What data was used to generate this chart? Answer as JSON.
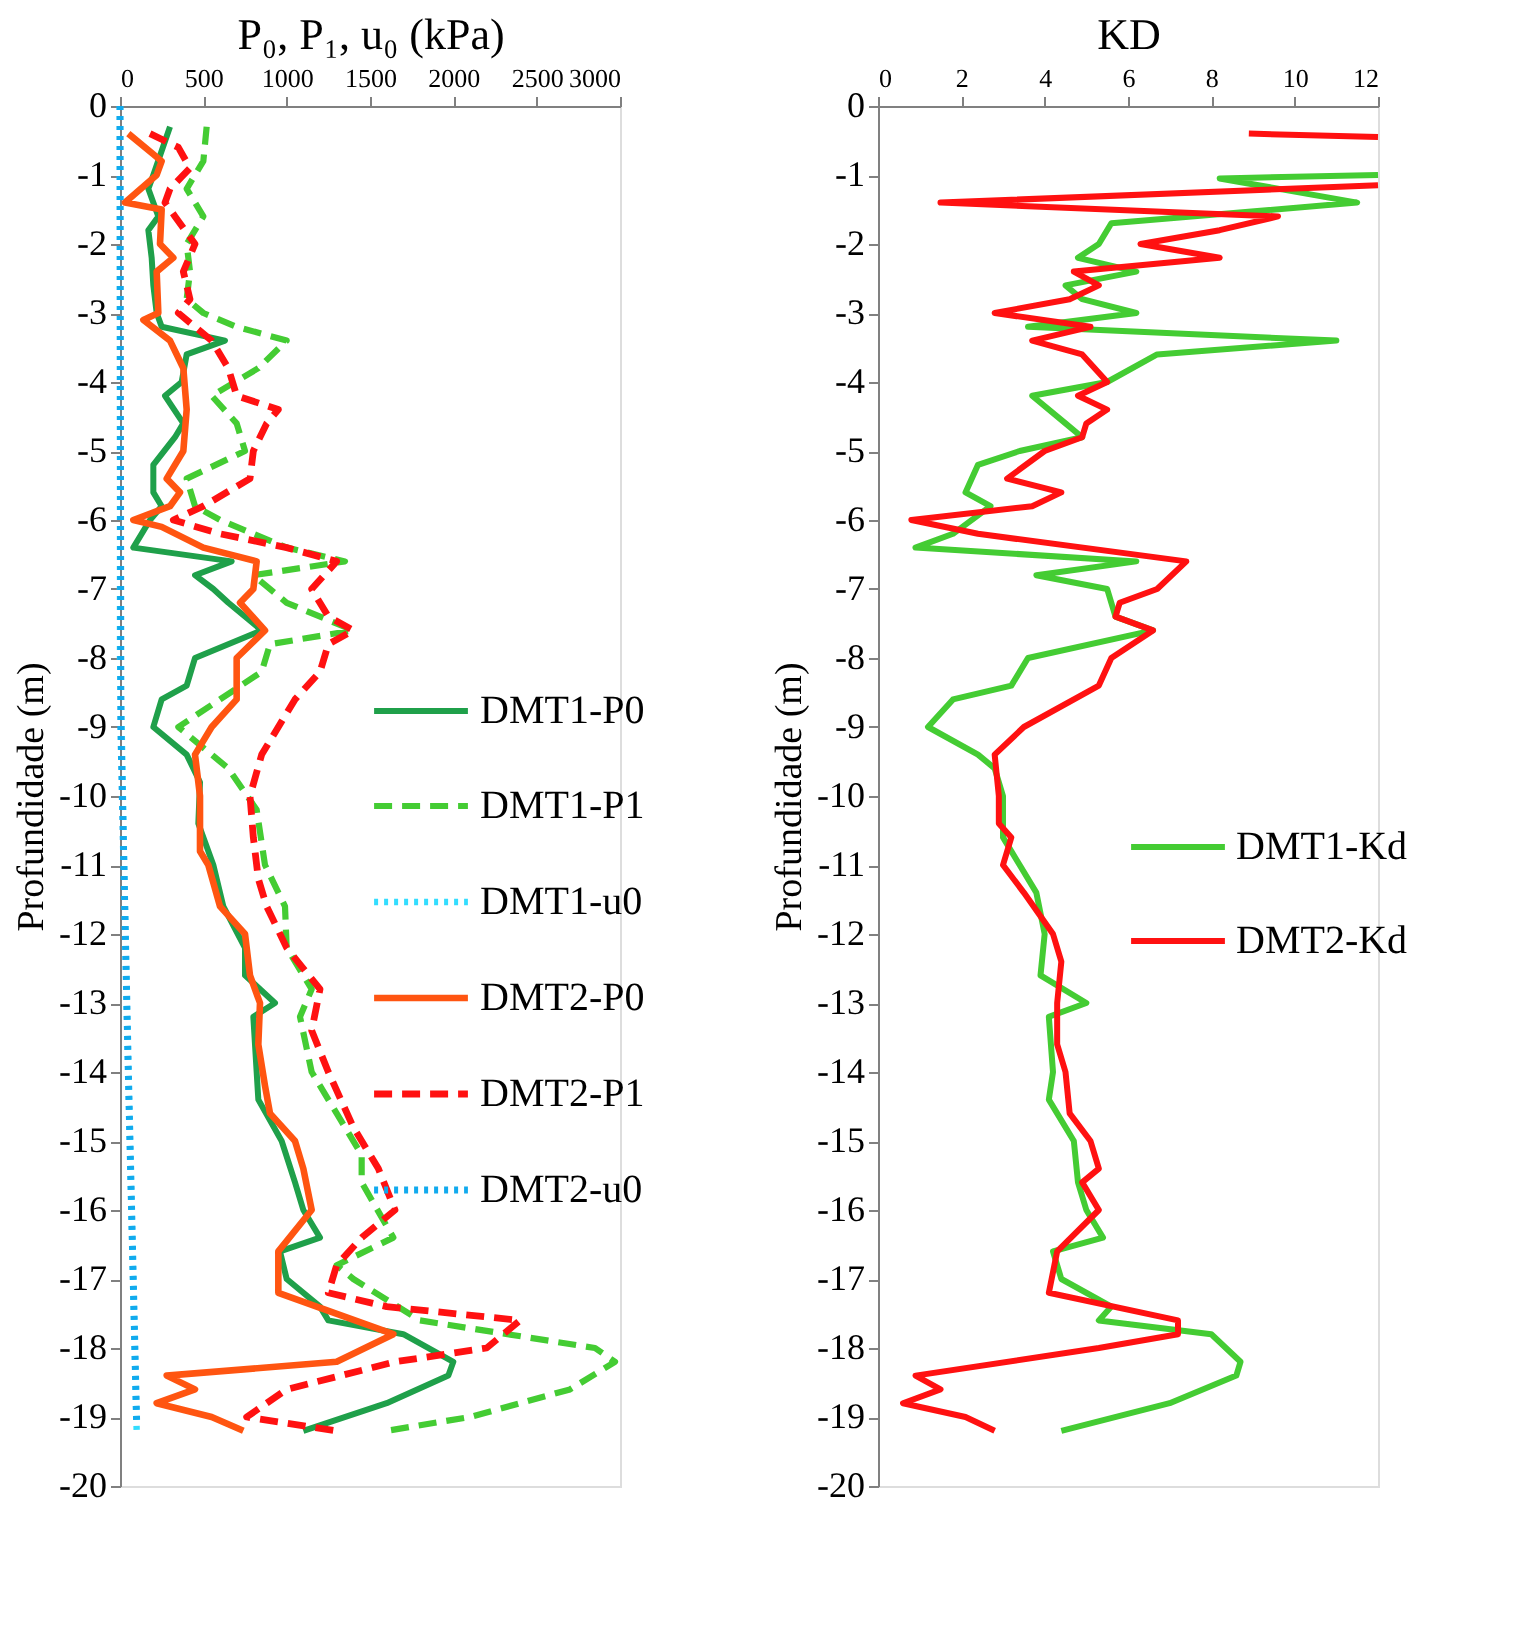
{
  "chart_data": [
    {
      "type": "line",
      "xlabel": "P₀, P₁, u₀ (kPa)",
      "ylabel": "Profundidade (m)",
      "xlim": [
        0,
        3000
      ],
      "xticks": [
        0,
        500,
        1000,
        1500,
        2000,
        2500,
        3000
      ],
      "ylim": [
        -20,
        0
      ],
      "yticks": [
        0,
        -1,
        -2,
        -3,
        -4,
        -5,
        -6,
        -7,
        -8,
        -9,
        -10,
        -11,
        -12,
        -13,
        -14,
        -15,
        -16,
        -17,
        -18,
        -19,
        -20
      ],
      "grid": false,
      "legend": "right",
      "series": [
        {
          "name": "DMT1-P0",
          "color": "#1fa04a",
          "line_style": "solid",
          "x": [
            300,
            200,
            170,
            230,
            170,
            190,
            200,
            220,
            250,
            630,
            400,
            370,
            270,
            380,
            330,
            200,
            200,
            250,
            180,
            80,
            670,
            450,
            560,
            650,
            850,
            450,
            400,
            250,
            200,
            400,
            480,
            470,
            560,
            620,
            750,
            750,
            930,
            800,
            820,
            830,
            970,
            1050,
            1100,
            1200,
            960,
            1000,
            1200,
            1250,
            1700,
            2000,
            1970,
            1600,
            1100
          ],
          "values": [
            -0.3,
            -1.0,
            -1.2,
            -1.6,
            -1.8,
            -2.2,
            -2.6,
            -3.0,
            -3.2,
            -3.4,
            -3.6,
            -4.0,
            -4.2,
            -4.6,
            -4.8,
            -5.2,
            -5.6,
            -5.8,
            -6.0,
            -6.4,
            -6.6,
            -6.8,
            -7.0,
            -7.2,
            -7.6,
            -8.0,
            -8.4,
            -8.6,
            -9.0,
            -9.4,
            -9.8,
            -10.4,
            -11.0,
            -11.6,
            -12.2,
            -12.6,
            -13.0,
            -13.2,
            -14.0,
            -14.4,
            -15.0,
            -15.6,
            -16.0,
            -16.4,
            -16.6,
            -17.0,
            -17.4,
            -17.6,
            -17.8,
            -18.2,
            -18.4,
            -18.8,
            -19.2
          ]
        },
        {
          "name": "DMT1-P1",
          "color": "#44cc33",
          "line_style": "dashed",
          "x": [
            520,
            500,
            400,
            500,
            400,
            420,
            400,
            500,
            700,
            1000,
            830,
            550,
            700,
            750,
            400,
            450,
            600,
            1000,
            1350,
            800,
            1000,
            1400,
            900,
            850,
            600,
            350,
            450,
            650,
            820,
            870,
            990,
            1000,
            1150,
            1080,
            1150,
            1300,
            1450,
            1450,
            1640,
            1300,
            1400,
            1800,
            2850,
            2970,
            2700,
            2100,
            1600
          ],
          "values": [
            -0.3,
            -0.8,
            -1.2,
            -1.6,
            -2.0,
            -2.4,
            -2.8,
            -3.0,
            -3.2,
            -3.4,
            -3.8,
            -4.2,
            -4.6,
            -5.0,
            -5.4,
            -5.8,
            -6.0,
            -6.4,
            -6.6,
            -6.8,
            -7.2,
            -7.6,
            -7.8,
            -8.2,
            -8.6,
            -9.0,
            -9.2,
            -9.6,
            -10.2,
            -11.0,
            -11.6,
            -12.2,
            -12.8,
            -13.2,
            -14.0,
            -14.6,
            -15.2,
            -15.6,
            -16.4,
            -16.8,
            -17.0,
            -17.6,
            -18.0,
            -18.2,
            -18.6,
            -19.0,
            -19.2
          ]
        },
        {
          "name": "DMT1-u0",
          "color": "#33ddff",
          "line_style": "dotted",
          "x": [
            0,
            0,
            10,
            40,
            100
          ],
          "values": [
            0,
            -8,
            -9,
            -13,
            -19.2
          ]
        },
        {
          "name": "DMT2-P0",
          "color": "#ff5511",
          "line_style": "solid",
          "x": [
            50,
            200,
            250,
            220,
            30,
            250,
            240,
            320,
            220,
            230,
            140,
            300,
            380,
            400,
            380,
            280,
            360,
            300,
            80,
            250,
            500,
            820,
            800,
            720,
            870,
            700,
            700,
            550,
            450,
            480,
            480,
            530,
            600,
            750,
            780,
            840,
            830,
            870,
            900,
            1050,
            1100,
            1150,
            950,
            950,
            1640,
            1300,
            280,
            450,
            220,
            550,
            740
          ],
          "values": [
            -0.4,
            -0.7,
            -0.8,
            -1.0,
            -1.4,
            -1.5,
            -2.0,
            -2.2,
            -2.4,
            -3.0,
            -3.1,
            -3.4,
            -3.8,
            -4.4,
            -5.0,
            -5.4,
            -5.6,
            -5.8,
            -6.0,
            -6.1,
            -6.4,
            -6.6,
            -7.0,
            -7.2,
            -7.6,
            -8.0,
            -8.6,
            -9.0,
            -9.4,
            -10.0,
            -10.8,
            -11.0,
            -11.6,
            -12.0,
            -12.6,
            -13.0,
            -13.6,
            -14.2,
            -14.6,
            -15.0,
            -15.4,
            -16.0,
            -16.6,
            -17.2,
            -17.8,
            -18.2,
            -18.4,
            -18.6,
            -18.8,
            -19.0,
            -19.2
          ]
        },
        {
          "name": "DMT2-P1",
          "color": "#ff1111",
          "line_style": "dashed",
          "x": [
            180,
            350,
            420,
            300,
            270,
            330,
            450,
            380,
            420,
            350,
            450,
            550,
            650,
            700,
            950,
            880,
            800,
            780,
            500,
            320,
            600,
            1000,
            1300,
            1150,
            1250,
            1400,
            1250,
            1200,
            1050,
            850,
            780,
            800,
            830,
            880,
            1000,
            1200,
            1150,
            1250,
            1400,
            1550,
            1650,
            1450,
            1300,
            1250,
            1600,
            2400,
            2200,
            1650,
            1000,
            760,
            1300
          ],
          "values": [
            -0.4,
            -0.6,
            -0.9,
            -1.2,
            -1.4,
            -1.6,
            -2.0,
            -2.4,
            -2.8,
            -3.0,
            -3.2,
            -3.4,
            -3.8,
            -4.2,
            -4.4,
            -4.6,
            -5.0,
            -5.4,
            -5.8,
            -6.0,
            -6.2,
            -6.4,
            -6.6,
            -7.0,
            -7.4,
            -7.6,
            -7.8,
            -8.2,
            -8.6,
            -9.4,
            -10.0,
            -10.6,
            -11.2,
            -11.6,
            -12.2,
            -12.8,
            -13.4,
            -14.0,
            -14.8,
            -15.4,
            -16.0,
            -16.4,
            -16.8,
            -17.2,
            -17.4,
            -17.6,
            -18.0,
            -18.2,
            -18.6,
            -19.0,
            -19.2
          ]
        },
        {
          "name": "DMT2-u0",
          "color": "#11aaee",
          "line_style": "dotted",
          "x": [
            0,
            5,
            50,
            100
          ],
          "values": [
            0,
            -9,
            -14,
            -19.1
          ]
        }
      ]
    },
    {
      "type": "line",
      "xlabel": "KD",
      "ylabel": "Profundidade (m)",
      "xlim": [
        0,
        12
      ],
      "xticks": [
        0,
        2,
        4,
        6,
        8,
        10,
        12
      ],
      "ylim": [
        -20,
        0
      ],
      "yticks": [
        0,
        -1,
        -2,
        -3,
        -4,
        -5,
        -6,
        -7,
        -8,
        -9,
        -10,
        -11,
        -12,
        -13,
        -14,
        -15,
        -16,
        -17,
        -18,
        -19,
        -20
      ],
      "grid": false,
      "legend": "right",
      "series": [
        {
          "name": "DMT1-Kd",
          "color": "#44cc33",
          "line_style": "solid",
          "x": [
            12,
            8.2,
            11.5,
            5.6,
            5.3,
            4.8,
            6.2,
            4.5,
            4.9,
            6.2,
            3.6,
            11,
            6.7,
            5.5,
            3.7,
            4.5,
            4.9,
            3.4,
            2.4,
            2.1,
            2.7,
            1.8,
            0.9,
            6.2,
            3.8,
            5.5,
            5.7,
            6.6,
            3.6,
            3.2,
            1.8,
            1.2,
            2.4,
            2.8,
            3.0,
            3.0,
            3.4,
            3.8,
            4.0,
            3.9,
            5.0,
            4.1,
            4.2,
            4.1,
            4.7,
            4.8,
            5.0,
            5.4,
            4.2,
            4.4,
            5.6,
            5.3,
            8.0,
            8.7,
            8.6,
            7.0,
            4.4
          ],
          "values": [
            -1.0,
            -1.05,
            -1.4,
            -1.7,
            -2.0,
            -2.2,
            -2.4,
            -2.6,
            -2.8,
            -3.0,
            -3.2,
            -3.4,
            -3.6,
            -4.0,
            -4.2,
            -4.6,
            -4.8,
            -5.0,
            -5.2,
            -5.6,
            -5.8,
            -6.2,
            -6.4,
            -6.6,
            -6.8,
            -7.0,
            -7.4,
            -7.6,
            -8.0,
            -8.4,
            -8.6,
            -9.0,
            -9.4,
            -9.6,
            -10.0,
            -10.6,
            -11.0,
            -11.4,
            -12.0,
            -12.6,
            -13.0,
            -13.2,
            -14.0,
            -14.4,
            -15.0,
            -15.6,
            -16.0,
            -16.4,
            -16.6,
            -17.0,
            -17.4,
            -17.6,
            -17.8,
            -18.2,
            -18.4,
            -18.8,
            -19.2
          ]
        },
        {
          "name": "DMT2-Kd",
          "color": "#ff1111",
          "line_style": "solid",
          "x": [
            8.9,
            12,
            null,
            12,
            1.5,
            9.6,
            8.2,
            6.3,
            8.2,
            4.7,
            5.3,
            4.6,
            2.8,
            5.1,
            3.7,
            4.9,
            5.5,
            4.8,
            5.5,
            5.0,
            4.9,
            4.0,
            3.1,
            4.4,
            3.7,
            0.8,
            2.4,
            7.4,
            6.7,
            5.8,
            5.7,
            6.6,
            5.6,
            5.3,
            3.5,
            2.8,
            2.9,
            2.9,
            3.2,
            3.0,
            3.5,
            4.2,
            4.4,
            4.3,
            4.3,
            4.5,
            4.6,
            5.1,
            5.3,
            4.9,
            5.3,
            4.3,
            4.1,
            7.2,
            7.2,
            5.3,
            0.9,
            1.5,
            0.6,
            2.1,
            2.8
          ],
          "values": [
            -0.4,
            -0.45,
            null,
            -1.15,
            -1.4,
            -1.6,
            -1.8,
            -2.0,
            -2.2,
            -2.4,
            -2.6,
            -2.8,
            -3.0,
            -3.2,
            -3.4,
            -3.6,
            -4.0,
            -4.2,
            -4.4,
            -4.6,
            -4.8,
            -5.0,
            -5.4,
            -5.6,
            -5.8,
            -6.0,
            -6.2,
            -6.6,
            -7.0,
            -7.2,
            -7.4,
            -7.6,
            -8.0,
            -8.4,
            -9.0,
            -9.4,
            -10.0,
            -10.4,
            -10.6,
            -11.0,
            -11.4,
            -12.0,
            -12.4,
            -13.0,
            -13.6,
            -14.0,
            -14.6,
            -15.0,
            -15.4,
            -15.6,
            -16.0,
            -16.6,
            -17.2,
            -17.6,
            -17.8,
            -18.0,
            -18.4,
            -18.6,
            -18.8,
            -19.0,
            -19.2
          ]
        }
      ]
    }
  ]
}
